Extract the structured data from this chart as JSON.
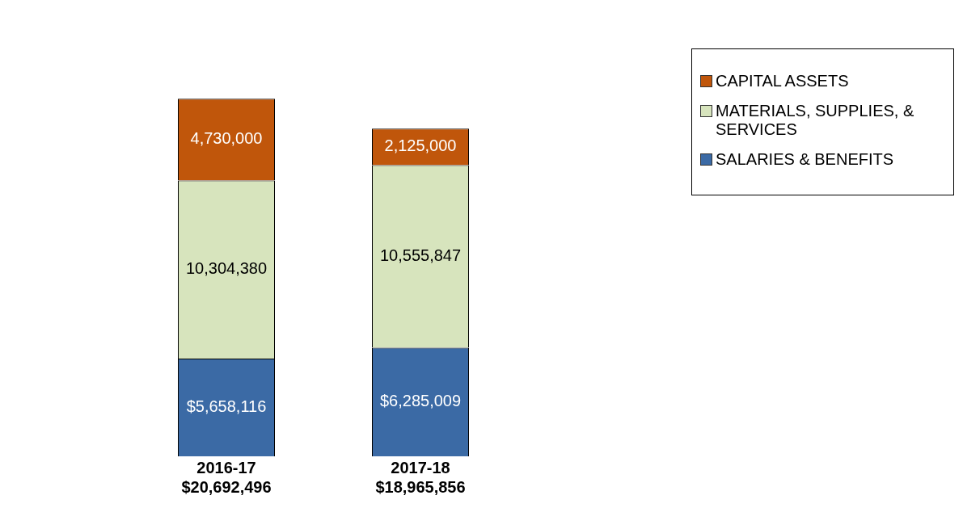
{
  "chart_data": {
    "type": "bar",
    "stacked": true,
    "categories": [
      "2016-17",
      "2017-18"
    ],
    "totals": [
      "$20,692,496",
      "$18,965,856"
    ],
    "series": [
      {
        "name": "SALARIES & BENEFITS",
        "color": "#3b6aa5",
        "values": [
          5658116,
          6285009
        ],
        "value_labels": [
          "$5,658,116",
          "$6,285,009"
        ]
      },
      {
        "name": "MATERIALS, SUPPLIES, & SERVICES",
        "color": "#d7e4bd",
        "values": [
          10304380,
          10555847
        ],
        "value_labels": [
          "10,304,380",
          "10,555,847"
        ]
      },
      {
        "name": "CAPITAL ASSETS",
        "color": "#c0560b",
        "values": [
          4730000,
          2125000
        ],
        "value_labels": [
          "4,730,000",
          "2,125,000"
        ]
      }
    ],
    "legend": "right",
    "grid": false
  }
}
